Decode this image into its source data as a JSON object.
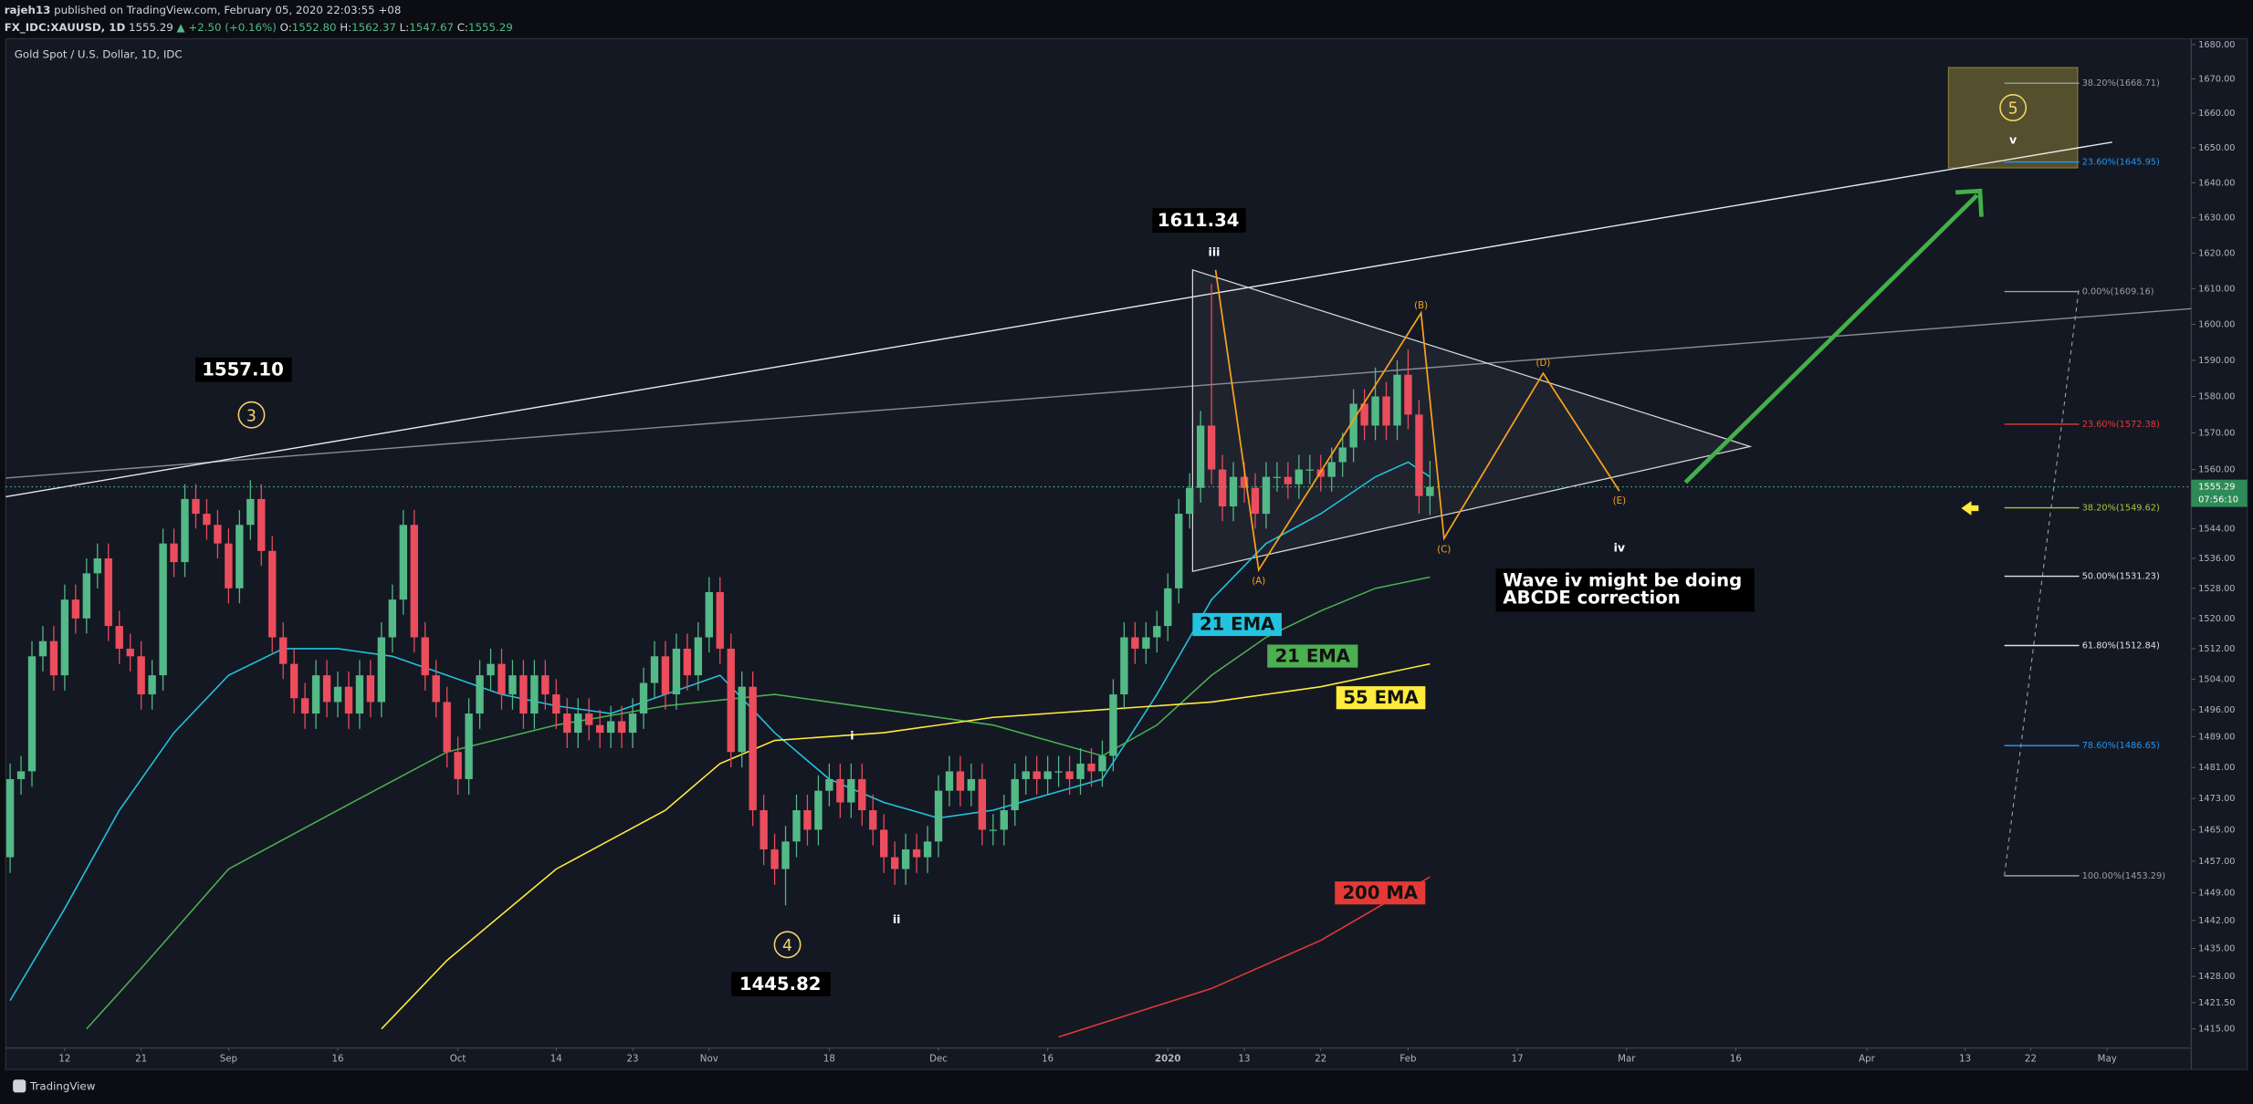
{
  "header": {
    "author": "rajeh13",
    "published": " published on TradingView.com, February 05, 2020 22:03:55 +08",
    "symbol": "FX_IDC:XAUUSD, 1D",
    "last": "1555.29",
    "change": "▲ +2.50 (+0.16%)",
    "ohlc": [
      [
        "O:",
        "1552.80"
      ],
      [
        "H:",
        "1562.37"
      ],
      [
        "L:",
        "1547.67"
      ],
      [
        "C:",
        "1555.29"
      ]
    ]
  },
  "footer": {
    "logo": "TradingView"
  },
  "chart_data": {
    "type": "candlestick",
    "title": "Gold Spot / U.S. Dollar, 1D, IDC",
    "log_scale": true,
    "grid": false,
    "up_color": "#53b987",
    "down_color": "#eb4d5c",
    "ylim": [
      1405,
      1681.7
    ],
    "yticks": [
      {
        "value": 1680,
        "label": "1680.00"
      },
      {
        "value": 1670,
        "label": "1670.00"
      },
      {
        "value": 1660,
        "label": "1660.00"
      },
      {
        "value": 1650,
        "label": "1650.00"
      },
      {
        "value": 1640,
        "label": "1640.00"
      },
      {
        "value": 1630,
        "label": "1630.00"
      },
      {
        "value": 1620,
        "label": "1620.00"
      },
      {
        "value": 1610,
        "label": "1610.00"
      },
      {
        "value": 1600,
        "label": "1600.00"
      },
      {
        "value": 1590,
        "label": "1590.00"
      },
      {
        "value": 1580,
        "label": "1580.00"
      },
      {
        "value": 1570,
        "label": "1570.00"
      },
      {
        "value": 1560,
        "label": "1560.00"
      },
      {
        "value": 1544,
        "label": "1544.00"
      },
      {
        "value": 1536,
        "label": "1536.00"
      },
      {
        "value": 1528,
        "label": "1528.00"
      },
      {
        "value": 1520,
        "label": "1520.00"
      },
      {
        "value": 1512,
        "label": "1512.00"
      },
      {
        "value": 1504,
        "label": "1504.00"
      },
      {
        "value": 1496,
        "label": "1496.00"
      },
      {
        "value": 1489,
        "label": "1489.00"
      },
      {
        "value": 1481,
        "label": "1481.00"
      },
      {
        "value": 1473,
        "label": "1473.00"
      },
      {
        "value": 1465,
        "label": "1465.00"
      },
      {
        "value": 1457,
        "label": "1457.00"
      },
      {
        "value": 1449,
        "label": "1449.00"
      },
      {
        "value": 1442,
        "label": "1442.00"
      },
      {
        "value": 1435,
        "label": "1435.00"
      },
      {
        "value": 1428,
        "label": "1428.00"
      },
      {
        "value": 1421.5,
        "label": "1421.50"
      },
      {
        "value": 1415,
        "label": "1415.00"
      }
    ],
    "xlim": [
      -0.4,
      199.7
    ],
    "xticks": [
      {
        "value": 5,
        "label": "12"
      },
      {
        "value": 12,
        "label": "21"
      },
      {
        "value": 20,
        "label": "Sep"
      },
      {
        "value": 30,
        "label": "16"
      },
      {
        "value": 41,
        "label": "Oct"
      },
      {
        "value": 50,
        "label": "14"
      },
      {
        "value": 57,
        "label": "23"
      },
      {
        "value": 64,
        "label": "Nov"
      },
      {
        "value": 75,
        "label": "18"
      },
      {
        "value": 85,
        "label": "Dec"
      },
      {
        "value": 95,
        "label": "16"
      },
      {
        "value": 106,
        "label": "2020"
      },
      {
        "value": 113,
        "label": "13"
      },
      {
        "value": 120,
        "label": "22"
      },
      {
        "value": 128,
        "label": "Feb"
      },
      {
        "value": 138,
        "label": "17"
      },
      {
        "value": 148,
        "label": "Mar"
      },
      {
        "value": 158,
        "label": "16"
      },
      {
        "value": 170,
        "label": "Apr"
      },
      {
        "value": 179,
        "label": "13"
      },
      {
        "value": 185,
        "label": "22"
      },
      {
        "value": 192,
        "label": "May"
      }
    ],
    "ohlc": [
      [
        1458,
        1482,
        1454,
        1478
      ],
      [
        1478,
        1484,
        1474,
        1480
      ],
      [
        1480,
        1514,
        1476,
        1510
      ],
      [
        1510,
        1518,
        1506,
        1514
      ],
      [
        1514,
        1518,
        1501,
        1505
      ],
      [
        1505,
        1529,
        1501,
        1525
      ],
      [
        1525,
        1529,
        1516,
        1520
      ],
      [
        1520,
        1536,
        1516,
        1532
      ],
      [
        1532,
        1540,
        1528,
        1536
      ],
      [
        1536,
        1540,
        1514,
        1518
      ],
      [
        1518,
        1522,
        1508,
        1512
      ],
      [
        1512,
        1516,
        1506,
        1510
      ],
      [
        1510,
        1514,
        1496,
        1500
      ],
      [
        1500,
        1509,
        1496,
        1505
      ],
      [
        1505,
        1544,
        1501,
        1540
      ],
      [
        1540,
        1544,
        1531,
        1535
      ],
      [
        1535,
        1556,
        1531,
        1552
      ],
      [
        1552,
        1556,
        1544,
        1548
      ],
      [
        1548,
        1552,
        1541,
        1545
      ],
      [
        1545,
        1549,
        1536,
        1540
      ],
      [
        1540,
        1544,
        1524,
        1528
      ],
      [
        1528,
        1549,
        1524,
        1545
      ],
      [
        1545,
        1557.1,
        1541,
        1552
      ],
      [
        1552,
        1556,
        1534,
        1538
      ],
      [
        1538,
        1542,
        1511,
        1515
      ],
      [
        1515,
        1519,
        1504,
        1508
      ],
      [
        1508,
        1512,
        1495,
        1499
      ],
      [
        1499,
        1503,
        1491,
        1495
      ],
      [
        1495,
        1509,
        1491,
        1505
      ],
      [
        1505,
        1509,
        1494,
        1498
      ],
      [
        1498,
        1506,
        1494,
        1502
      ],
      [
        1502,
        1506,
        1491,
        1495
      ],
      [
        1495,
        1509,
        1491,
        1505
      ],
      [
        1505,
        1509,
        1494,
        1498
      ],
      [
        1498,
        1519,
        1494,
        1515
      ],
      [
        1515,
        1529,
        1511,
        1525
      ],
      [
        1525,
        1549,
        1521,
        1545
      ],
      [
        1545,
        1549,
        1511,
        1515
      ],
      [
        1515,
        1519,
        1501,
        1505
      ],
      [
        1505,
        1509,
        1494,
        1498
      ],
      [
        1498,
        1502,
        1481,
        1485
      ],
      [
        1485,
        1489,
        1474,
        1478
      ],
      [
        1478,
        1499,
        1474,
        1495
      ],
      [
        1495,
        1509,
        1491,
        1505
      ],
      [
        1505,
        1512,
        1501,
        1508
      ],
      [
        1508,
        1512,
        1496,
        1500
      ],
      [
        1500,
        1509,
        1496,
        1505
      ],
      [
        1505,
        1509,
        1491,
        1495
      ],
      [
        1495,
        1509,
        1491,
        1505
      ],
      [
        1505,
        1509,
        1496,
        1500
      ],
      [
        1500,
        1504,
        1491,
        1495
      ],
      [
        1495,
        1499,
        1486,
        1490
      ],
      [
        1490,
        1499,
        1486,
        1495
      ],
      [
        1495,
        1499,
        1488,
        1492
      ],
      [
        1492,
        1496,
        1486,
        1490
      ],
      [
        1490,
        1497,
        1486,
        1493
      ],
      [
        1493,
        1497,
        1486,
        1490
      ],
      [
        1490,
        1499,
        1486,
        1495
      ],
      [
        1495,
        1507,
        1491,
        1503
      ],
      [
        1503,
        1514,
        1499,
        1510
      ],
      [
        1510,
        1514,
        1496,
        1500
      ],
      [
        1500,
        1516,
        1496,
        1512
      ],
      [
        1512,
        1516,
        1501,
        1505
      ],
      [
        1505,
        1519,
        1501,
        1515
      ],
      [
        1515,
        1531,
        1511,
        1527
      ],
      [
        1527,
        1531,
        1508,
        1512
      ],
      [
        1512,
        1516,
        1481,
        1485
      ],
      [
        1485,
        1506,
        1481,
        1502
      ],
      [
        1502,
        1506,
        1466,
        1470
      ],
      [
        1470,
        1474,
        1456,
        1460
      ],
      [
        1460,
        1464,
        1451,
        1455
      ],
      [
        1455,
        1466,
        1445.82,
        1462
      ],
      [
        1462,
        1474,
        1458,
        1470
      ],
      [
        1470,
        1474,
        1461,
        1465
      ],
      [
        1465,
        1479,
        1461,
        1475
      ],
      [
        1475,
        1482,
        1471,
        1478
      ],
      [
        1478,
        1482,
        1468,
        1472
      ],
      [
        1472,
        1482,
        1468,
        1478
      ],
      [
        1478,
        1482,
        1466,
        1470
      ],
      [
        1470,
        1474,
        1461,
        1465
      ],
      [
        1465,
        1469,
        1454,
        1458
      ],
      [
        1458,
        1462,
        1451,
        1455
      ],
      [
        1455,
        1464,
        1451,
        1460
      ],
      [
        1460,
        1464,
        1454,
        1458
      ],
      [
        1458,
        1466,
        1454,
        1462
      ],
      [
        1462,
        1479,
        1458,
        1475
      ],
      [
        1475,
        1484,
        1471,
        1480
      ],
      [
        1480,
        1484,
        1471,
        1475
      ],
      [
        1475,
        1482,
        1471,
        1478
      ],
      [
        1478,
        1482,
        1461,
        1465
      ],
      [
        1465,
        1469,
        1461,
        1465
      ],
      [
        1465,
        1474,
        1461,
        1470
      ],
      [
        1470,
        1482,
        1466,
        1478
      ],
      [
        1478,
        1484,
        1474,
        1480
      ],
      [
        1480,
        1484,
        1474,
        1478
      ],
      [
        1478,
        1484,
        1474,
        1480
      ],
      [
        1480,
        1484,
        1476,
        1480
      ],
      [
        1480,
        1484,
        1474,
        1478
      ],
      [
        1478,
        1486,
        1474,
        1482
      ],
      [
        1482,
        1486,
        1476,
        1480
      ],
      [
        1480,
        1488,
        1476,
        1484
      ],
      [
        1484,
        1504,
        1480,
        1500
      ],
      [
        1500,
        1519,
        1496,
        1515
      ],
      [
        1515,
        1519,
        1508,
        1512
      ],
      [
        1512,
        1519,
        1508,
        1515
      ],
      [
        1515,
        1522,
        1511,
        1518
      ],
      [
        1518,
        1532,
        1514,
        1528
      ],
      [
        1528,
        1552,
        1524,
        1548
      ],
      [
        1548,
        1559,
        1544,
        1555
      ],
      [
        1555,
        1576,
        1551,
        1572
      ],
      [
        1572,
        1611.34,
        1556,
        1560
      ],
      [
        1560,
        1564,
        1546,
        1550
      ],
      [
        1550,
        1562,
        1546,
        1558
      ],
      [
        1558,
        1562,
        1551,
        1555
      ],
      [
        1555,
        1559,
        1544,
        1548
      ],
      [
        1548,
        1562,
        1544,
        1558
      ],
      [
        1558,
        1562,
        1554,
        1558
      ],
      [
        1558,
        1562,
        1552,
        1556
      ],
      [
        1556,
        1564,
        1552,
        1560
      ],
      [
        1560,
        1564,
        1556,
        1560
      ],
      [
        1560,
        1564,
        1554,
        1558
      ],
      [
        1558,
        1566,
        1554,
        1562
      ],
      [
        1562,
        1570,
        1558,
        1566
      ],
      [
        1566,
        1582,
        1562,
        1578
      ],
      [
        1578,
        1582,
        1568,
        1572
      ],
      [
        1572,
        1588,
        1568,
        1580
      ],
      [
        1580,
        1584,
        1568,
        1572
      ],
      [
        1572,
        1590,
        1568,
        1586
      ],
      [
        1586,
        1593,
        1571,
        1575
      ],
      [
        1575,
        1579,
        1548,
        1552.8
      ],
      [
        1552.8,
        1562.37,
        1547.67,
        1555.29
      ]
    ],
    "series": [
      {
        "name": "21 EMA",
        "color": "#22c3de",
        "x": [
          0,
          5,
          10,
          15,
          20,
          25,
          30,
          35,
          40,
          45,
          50,
          55,
          60,
          65,
          70,
          75,
          80,
          85,
          90,
          95,
          100,
          105,
          110,
          115,
          120,
          125,
          128,
          130
        ],
        "values": [
          1422,
          1445,
          1470,
          1490,
          1505,
          1512,
          1512,
          1510,
          1505,
          1500,
          1497,
          1495,
          1500,
          1505,
          1490,
          1478,
          1472,
          1468,
          1470,
          1474,
          1478,
          1500,
          1525,
          1540,
          1548,
          1558,
          1562,
          1558
        ]
      },
      {
        "name": "21 EMA",
        "color": "#4caf50",
        "x": [
          7,
          12,
          20,
          30,
          40,
          50,
          60,
          70,
          80,
          90,
          100,
          105,
          110,
          115,
          120,
          125,
          130
        ],
        "values": [
          1415,
          1430,
          1455,
          1470,
          1485,
          1492,
          1497,
          1500,
          1496,
          1492,
          1484,
          1492,
          1505,
          1515,
          1522,
          1528,
          1531
        ]
      },
      {
        "name": "55 EMA",
        "color": "#ffeb3b",
        "x": [
          34,
          40,
          50,
          60,
          65,
          70,
          80,
          90,
          100,
          110,
          120,
          130
        ],
        "values": [
          1415,
          1432,
          1455,
          1470,
          1482,
          1488,
          1490,
          1494,
          1496,
          1498,
          1502,
          1508
        ]
      },
      {
        "name": "200 MA",
        "color": "#e53935",
        "x": [
          96,
          110,
          120,
          130
        ],
        "values": [
          1413,
          1425,
          1437,
          1453
        ]
      }
    ],
    "last_price": {
      "value": 1555.29,
      "label": "1555.29"
    },
    "countdown": "07:56:10",
    "fibonacci": [
      {
        "value": 1668.71,
        "label": "38.20%(1668.71)",
        "color": "#9e9e9e"
      },
      {
        "value": 1645.95,
        "label": "23.60%(1645.95)",
        "color": "#2196f3"
      },
      {
        "value": 1609.16,
        "label": "0.00%(1609.16)",
        "color": "#9e9e9e"
      },
      {
        "value": 1572.38,
        "label": "23.60%(1572.38)",
        "color": "#e53935"
      },
      {
        "value": 1549.62,
        "label": "38.20%(1549.62)",
        "color": "#a5c83c"
      },
      {
        "value": 1531.23,
        "label": "50.00%(1531.23)",
        "color": "#e0e0e0"
      },
      {
        "value": 1512.84,
        "label": "61.80%(1512.84)",
        "color": "#e0e0e0"
      },
      {
        "value": 1486.65,
        "label": "78.60%(1486.65)",
        "color": "#2196f3"
      },
      {
        "value": 1453.29,
        "label": "100.00%(1453.29)",
        "color": "#9e9e9e"
      }
    ],
    "annotations": {
      "price_labels": [
        1611.34,
        {
          "value": 1557.1,
          "label": "1557.10"
        },
        1445.82
      ],
      "waves": [
        "iii",
        "i",
        "ii",
        "iv",
        "v"
      ],
      "circled": [
        "3",
        "4",
        "5"
      ],
      "abcde": [
        "(A)",
        "(B)",
        "(C)",
        "(D)",
        "(E)"
      ],
      "note": [
        "Wave iv might be doing",
        "ABCDE correction"
      ]
    }
  }
}
